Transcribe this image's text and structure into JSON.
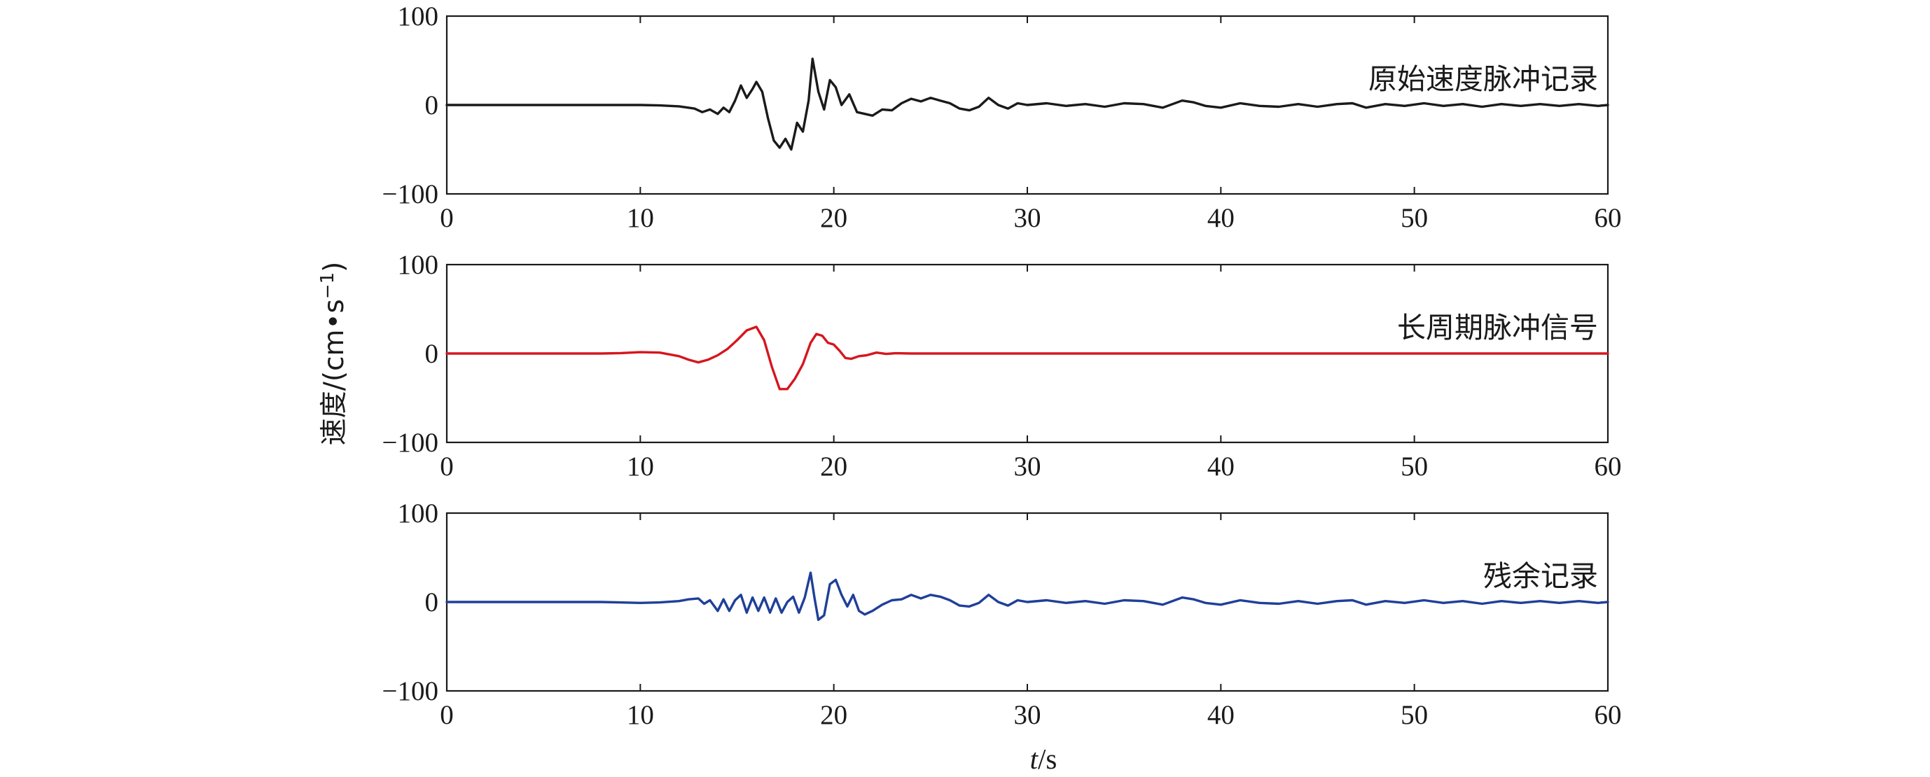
{
  "chart_data": {
    "type": "line",
    "xlabel_italic": "t",
    "xlabel_unit": "/s",
    "ylabel_text": "速度/(cm•s",
    "ylabel_sup": "−1",
    "ylabel_close": ")",
    "xlim": [
      0,
      60
    ],
    "ylim": [
      -100,
      100
    ],
    "xticks": [
      "0",
      "10",
      "20",
      "30",
      "40",
      "50",
      "60"
    ],
    "yticks": [
      "100",
      "0",
      "−100"
    ],
    "grid": false,
    "panels": [
      {
        "annotation": "原始速度脉冲记录",
        "color": "#1a1a1a",
        "x": [
          0,
          5,
          10,
          11,
          12,
          12.8,
          13.2,
          13.6,
          14.0,
          14.3,
          14.6,
          14.9,
          15.2,
          15.5,
          15.8,
          16.0,
          16.3,
          16.6,
          16.9,
          17.2,
          17.5,
          17.8,
          18.1,
          18.4,
          18.7,
          18.9,
          19.2,
          19.5,
          19.8,
          20.1,
          20.4,
          20.8,
          21.2,
          21.6,
          22.0,
          22.5,
          23.0,
          23.5,
          24.0,
          24.5,
          25.0,
          25.5,
          26.0,
          26.5,
          27.0,
          27.5,
          28.0,
          28.5,
          29.0,
          29.5,
          30.0,
          31.0,
          32.0,
          33.0,
          34.0,
          35.0,
          36.0,
          37.0,
          38.0,
          38.6,
          39.2,
          40.0,
          41.0,
          42.0,
          43.0,
          44.0,
          45.0,
          46.0,
          46.8,
          47.5,
          48.5,
          49.5,
          50.5,
          51.5,
          52.5,
          53.5,
          54.5,
          55.5,
          56.5,
          57.5,
          58.5,
          59.5,
          60.0
        ],
        "y": [
          0,
          0,
          0,
          -0.5,
          -1.5,
          -4,
          -8,
          -5,
          -10,
          -3,
          -8,
          5,
          22,
          8,
          18,
          26,
          15,
          -15,
          -40,
          -48,
          -38,
          -50,
          -20,
          -30,
          5,
          52,
          15,
          -5,
          28,
          20,
          0,
          12,
          -8,
          -10,
          -12,
          -5,
          -6,
          2,
          7,
          4,
          8,
          5,
          2,
          -4,
          -6,
          -2,
          8,
          0,
          -4,
          2,
          0,
          2,
          -1,
          1,
          -2,
          2,
          1,
          -3,
          5,
          3,
          -1,
          -3,
          2,
          -1,
          -2,
          1,
          -2,
          1,
          2,
          -3,
          1,
          -1,
          2,
          -1,
          1,
          -2,
          1,
          -1,
          1,
          -1,
          1,
          -1,
          0
        ]
      },
      {
        "annotation": "长周期脉冲信号",
        "color": "#d6161e",
        "x": [
          0,
          5,
          8,
          9,
          10,
          11,
          12,
          12.5,
          13.0,
          13.5,
          14.0,
          14.5,
          15.0,
          15.5,
          16.0,
          16.4,
          16.8,
          17.2,
          17.6,
          18.0,
          18.4,
          18.8,
          19.1,
          19.4,
          19.7,
          20.0,
          20.3,
          20.6,
          20.9,
          21.3,
          21.7,
          22.2,
          22.7,
          23.2,
          24,
          25,
          30,
          40,
          50,
          60
        ],
        "y": [
          0,
          0,
          0,
          0.5,
          1.5,
          1,
          -3,
          -7,
          -10,
          -7,
          -2,
          5,
          15,
          26,
          30,
          15,
          -15,
          -40,
          -40,
          -28,
          -12,
          12,
          22,
          20,
          12,
          10,
          3,
          -5,
          -6,
          -3,
          -2,
          1,
          -0.5,
          0.3,
          0,
          0,
          0,
          0,
          0,
          0
        ]
      },
      {
        "annotation": "残余记录",
        "color": "#1f3f99",
        "x": [
          0,
          5,
          8,
          10,
          11,
          12,
          12.5,
          13.0,
          13.3,
          13.6,
          14.0,
          14.3,
          14.6,
          14.9,
          15.2,
          15.5,
          15.8,
          16.1,
          16.4,
          16.7,
          17.0,
          17.3,
          17.6,
          17.9,
          18.2,
          18.5,
          18.8,
          19.0,
          19.2,
          19.5,
          19.8,
          20.1,
          20.4,
          20.7,
          21.0,
          21.3,
          21.6,
          22.0,
          22.5,
          23.0,
          23.5,
          24.0,
          24.5,
          25.0,
          25.5,
          26.0,
          26.5,
          27.0,
          27.5,
          28.0,
          28.5,
          29.0,
          29.5,
          30.0,
          31.0,
          32.0,
          33.0,
          34.0,
          35.0,
          36.0,
          37.0,
          38.0,
          38.6,
          39.2,
          40.0,
          41.0,
          42.0,
          43.0,
          44.0,
          45.0,
          46.0,
          46.8,
          47.5,
          48.5,
          49.5,
          50.5,
          51.5,
          52.5,
          53.5,
          54.5,
          55.5,
          56.5,
          57.5,
          58.5,
          59.5,
          60.0
        ],
        "y": [
          0,
          0,
          0,
          -1,
          -0.5,
          1,
          3,
          4,
          -2,
          2,
          -10,
          3,
          -10,
          2,
          8,
          -12,
          5,
          -10,
          5,
          -12,
          4,
          -12,
          0,
          6,
          -12,
          5,
          33,
          5,
          -20,
          -15,
          20,
          25,
          8,
          -5,
          8,
          -10,
          -14,
          -10,
          -3,
          2,
          3,
          8,
          4,
          8,
          6,
          2,
          -4,
          -5,
          -1,
          8,
          0,
          -4,
          2,
          0,
          2,
          -1,
          1,
          -2,
          2,
          1,
          -3,
          5,
          3,
          -1,
          -3,
          2,
          -1,
          -2,
          1,
          -2,
          1,
          2,
          -3,
          1,
          -1,
          2,
          -1,
          1,
          -2,
          1,
          -1,
          1,
          -1,
          1,
          -1,
          0
        ]
      }
    ]
  }
}
